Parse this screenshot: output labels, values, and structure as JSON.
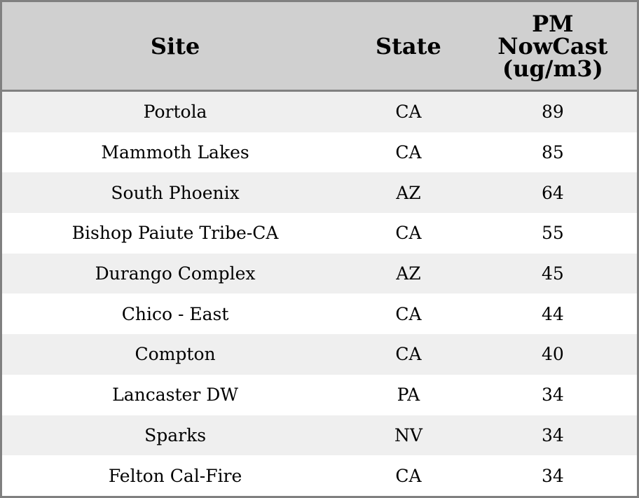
{
  "table": {
    "headers": [
      "Site",
      "State",
      "PM NowCast (ug/m3)"
    ],
    "header_lines": {
      "pm": [
        "PM",
        "NowCast",
        "(ug/m3)"
      ]
    },
    "rows": [
      [
        "Portola",
        "CA",
        "89"
      ],
      [
        "Mammoth Lakes",
        "CA",
        "85"
      ],
      [
        "South Phoenix",
        "AZ",
        "64"
      ],
      [
        "Bishop Paiute Tribe-CA",
        "CA",
        "55"
      ],
      [
        "Durango Complex",
        "AZ",
        "45"
      ],
      [
        "Chico - East",
        "CA",
        "44"
      ],
      [
        "Compton",
        "CA",
        "40"
      ],
      [
        "Lancaster DW",
        "PA",
        "34"
      ],
      [
        "Sparks",
        "NV",
        "34"
      ],
      [
        "Felton Cal-Fire",
        "CA",
        "34"
      ]
    ]
  },
  "colors": {
    "header_bg": "#d0d0d0",
    "stripe": "#efefef",
    "border": "#808080"
  }
}
